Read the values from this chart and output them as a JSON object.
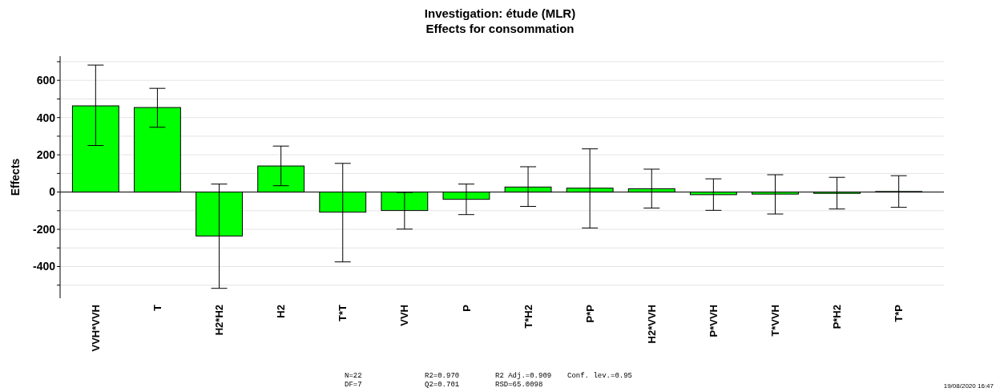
{
  "chart_data": {
    "type": "bar",
    "title": "Investigation: étude (MLR)",
    "subtitle": "Effects for consommation",
    "ylabel": "Effects",
    "categories": [
      "VVH*VVH",
      "T",
      "H2*H2",
      "H2",
      "T*T",
      "VVH",
      "P",
      "T*H2",
      "P*P",
      "H2*VVH",
      "P*VVH",
      "T*VVH",
      "P*H2",
      "T*P"
    ],
    "values": [
      463,
      454,
      -236,
      140,
      -108,
      -99,
      -39,
      27,
      21,
      18,
      -14,
      -11,
      -7,
      3
    ],
    "errors": [
      [
        250,
        682
      ],
      [
        348,
        557
      ],
      [
        -517,
        43
      ],
      [
        34,
        247
      ],
      [
        -375,
        154
      ],
      [
        -199,
        -2
      ],
      [
        -121,
        43
      ],
      [
        -77,
        136
      ],
      [
        -193,
        232
      ],
      [
        -86,
        123
      ],
      [
        -98,
        71
      ],
      [
        -118,
        93
      ],
      [
        -91,
        79
      ],
      [
        -82,
        88
      ]
    ],
    "color": "#00ff00",
    "ylim": [
      -570,
      730
    ],
    "yticks": [
      {
        "value": -500,
        "label": null
      },
      -400,
      {
        "value": -300,
        "label": null
      },
      -200,
      {
        "value": -100,
        "label": null
      },
      0,
      {
        "value": 100,
        "label": null
      },
      200,
      {
        "value": 300,
        "label": null
      },
      400,
      {
        "value": 500,
        "label": null
      },
      600,
      {
        "value": 700,
        "label": null
      }
    ],
    "grid": "y",
    "annotations": [
      "N=22",
      "DF=7",
      "R2=0.970",
      "Q2=0.701",
      "R2 Adj.=0.909",
      "RSD=65.0098",
      "Conf. lev.=0.95",
      "19/08/2020 16:47"
    ]
  }
}
